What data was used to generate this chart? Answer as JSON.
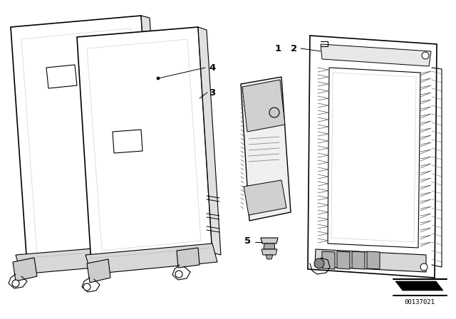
{
  "bg_color": "#ffffff",
  "line_color": "#000000",
  "diagram_id": "00137021",
  "figsize": [
    6.4,
    4.48
  ],
  "dpi": 100
}
